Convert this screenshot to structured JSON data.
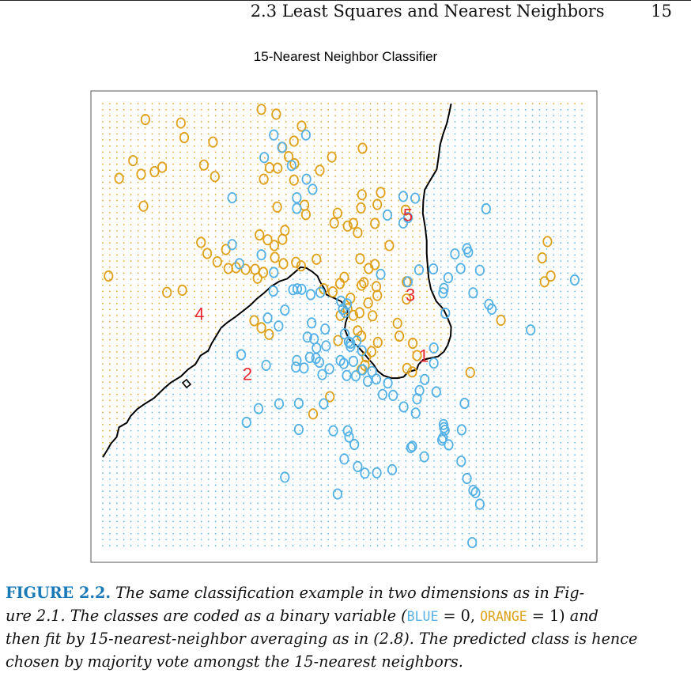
{
  "header": {
    "section_title": "2.3 Least Squares and Nearest Neighbors",
    "page_number": "15"
  },
  "colors": {
    "blue": "#55b1e5",
    "orange": "#dfa11b",
    "boundary": "#000000",
    "label_red": "#e8262e",
    "caption_label": "#1a7ab8"
  },
  "chart_data": {
    "type": "scatter",
    "title": "15-Nearest Neighbor Classifier",
    "xlabel": "",
    "ylabel": "",
    "axes_visible": false,
    "xlim": [
      0,
      1
    ],
    "ylim": [
      0,
      1
    ],
    "classes": [
      {
        "name": "BLUE",
        "code": 0,
        "color": "#55b1e5"
      },
      {
        "name": "ORANGE",
        "code": 1,
        "color": "#dfa11b"
      }
    ],
    "background_grid": {
      "rows": 74,
      "cols": 69,
      "description": "predicted class at each grid location, colored by class"
    },
    "orange_points": [
      [
        0.089,
        0.964
      ],
      [
        0.163,
        0.956
      ],
      [
        0.331,
        0.987
      ],
      [
        0.362,
        0.976
      ],
      [
        0.415,
        0.949
      ],
      [
        0.17,
        0.923
      ],
      [
        0.23,
        0.913
      ],
      [
        0.399,
        0.915
      ],
      [
        0.375,
        0.901
      ],
      [
        0.542,
        0.899
      ],
      [
        0.388,
        0.88
      ],
      [
        0.348,
        0.855
      ],
      [
        0.4,
        0.864
      ],
      [
        0.453,
        0.849
      ],
      [
        0.478,
        0.879
      ],
      [
        0.365,
        0.854
      ],
      [
        0.063,
        0.871
      ],
      [
        0.124,
        0.856
      ],
      [
        0.034,
        0.831
      ],
      [
        0.08,
        0.84
      ],
      [
        0.108,
        0.846
      ],
      [
        0.211,
        0.861
      ],
      [
        0.234,
        0.835
      ],
      [
        0.336,
        0.829
      ],
      [
        0.399,
        0.827
      ],
      [
        0.364,
        0.766
      ],
      [
        0.421,
        0.77
      ],
      [
        0.424,
        0.749
      ],
      [
        0.49,
        0.752
      ],
      [
        0.541,
        0.794
      ],
      [
        0.539,
        0.764
      ],
      [
        0.573,
        0.772
      ],
      [
        0.58,
        0.799
      ],
      [
        0.483,
        0.73
      ],
      [
        0.511,
        0.723
      ],
      [
        0.523,
        0.729
      ],
      [
        0.532,
        0.708
      ],
      [
        0.568,
        0.729
      ],
      [
        0.632,
        0.759
      ],
      [
        0.085,
        0.768
      ],
      [
        0.327,
        0.703
      ],
      [
        0.344,
        0.692
      ],
      [
        0.358,
        0.679
      ],
      [
        0.375,
        0.693
      ],
      [
        0.38,
        0.713
      ],
      [
        0.205,
        0.686
      ],
      [
        0.218,
        0.661
      ],
      [
        0.257,
        0.67
      ],
      [
        0.239,
        0.642
      ],
      [
        0.262,
        0.627
      ],
      [
        0.278,
        0.629
      ],
      [
        0.298,
        0.625
      ],
      [
        0.318,
        0.625
      ],
      [
        0.335,
        0.618
      ],
      [
        0.323,
        0.605
      ],
      [
        0.359,
        0.652
      ],
      [
        0.377,
        0.638
      ],
      [
        0.403,
        0.641
      ],
      [
        0.414,
        0.633
      ],
      [
        0.446,
        0.648
      ],
      [
        0.537,
        0.649
      ],
      [
        0.555,
        0.627
      ],
      [
        0.568,
        0.636
      ],
      [
        0.598,
        0.679
      ],
      [
        0.461,
        0.581
      ],
      [
        0.48,
        0.574
      ],
      [
        0.495,
        0.593
      ],
      [
        0.504,
        0.607
      ],
      [
        0.54,
        0.589
      ],
      [
        0.545,
        0.595
      ],
      [
        0.571,
        0.586
      ],
      [
        0.573,
        0.566
      ],
      [
        0.554,
        0.549
      ],
      [
        0.517,
        0.56
      ],
      [
        0.511,
        0.536
      ],
      [
        0.496,
        0.521
      ],
      [
        0.523,
        0.521
      ],
      [
        0.536,
        0.527
      ],
      [
        0.563,
        0.52
      ],
      [
        0.574,
        0.46
      ],
      [
        0.532,
        0.486
      ],
      [
        0.615,
        0.503
      ],
      [
        0.634,
        0.558
      ],
      [
        0.634,
        0.597
      ],
      [
        0.012,
        0.61
      ],
      [
        0.134,
        0.573
      ],
      [
        0.166,
        0.578
      ],
      [
        0.316,
        0.509
      ],
      [
        0.331,
        0.493
      ],
      [
        0.347,
        0.478
      ],
      [
        0.491,
        0.464
      ],
      [
        0.54,
        0.474
      ],
      [
        0.561,
        0.439
      ],
      [
        0.55,
        0.427
      ],
      [
        0.547,
        0.408
      ],
      [
        0.619,
        0.474
      ],
      [
        0.635,
        0.401
      ],
      [
        0.474,
        0.337
      ],
      [
        0.439,
        0.298
      ],
      [
        0.54,
        0.398
      ],
      [
        0.646,
        0.393
      ],
      [
        0.647,
        0.458
      ],
      [
        0.656,
        0.43
      ],
      [
        0.767,
        0.392
      ],
      [
        0.831,
        0.51
      ],
      [
        0.928,
        0.688
      ],
      [
        0.917,
        0.651
      ],
      [
        0.922,
        0.597
      ],
      [
        0.935,
        0.61
      ]
    ],
    "blue_points": [
      [
        0.357,
        0.929
      ],
      [
        0.424,
        0.929
      ],
      [
        0.337,
        0.878
      ],
      [
        0.374,
        0.901
      ],
      [
        0.394,
        0.86
      ],
      [
        0.425,
        0.829
      ],
      [
        0.438,
        0.806
      ],
      [
        0.405,
        0.787
      ],
      [
        0.27,
        0.787
      ],
      [
        0.405,
        0.763
      ],
      [
        0.627,
        0.79
      ],
      [
        0.652,
        0.786
      ],
      [
        0.594,
        0.748
      ],
      [
        0.637,
        0.742
      ],
      [
        0.627,
        0.73
      ],
      [
        0.27,
        0.681
      ],
      [
        0.285,
        0.638
      ],
      [
        0.331,
        0.658
      ],
      [
        0.357,
        0.618
      ],
      [
        0.356,
        0.576
      ],
      [
        0.397,
        0.579
      ],
      [
        0.406,
        0.581
      ],
      [
        0.415,
        0.58
      ],
      [
        0.434,
        0.568
      ],
      [
        0.454,
        0.573
      ],
      [
        0.497,
        0.553
      ],
      [
        0.51,
        0.547
      ],
      [
        0.501,
        0.535
      ],
      [
        0.506,
        0.528
      ],
      [
        0.58,
        0.614
      ],
      [
        0.66,
        0.624
      ],
      [
        0.637,
        0.597
      ],
      [
        0.69,
        0.626
      ],
      [
        0.721,
        0.606
      ],
      [
        0.76,
        0.672
      ],
      [
        0.763,
        0.664
      ],
      [
        0.735,
        0.66
      ],
      [
        0.747,
        0.627
      ],
      [
        0.787,
        0.623
      ],
      [
        0.8,
        0.762
      ],
      [
        0.712,
        0.582
      ],
      [
        0.71,
        0.572
      ],
      [
        0.715,
        0.526
      ],
      [
        0.773,
        0.572
      ],
      [
        0.806,
        0.546
      ],
      [
        0.812,
        0.535
      ],
      [
        0.893,
        0.488
      ],
      [
        0.985,
        0.601
      ],
      [
        0.344,
        0.515
      ],
      [
        0.367,
        0.497
      ],
      [
        0.38,
        0.533
      ],
      [
        0.436,
        0.504
      ],
      [
        0.427,
        0.472
      ],
      [
        0.441,
        0.468
      ],
      [
        0.446,
        0.447
      ],
      [
        0.464,
        0.49
      ],
      [
        0.466,
        0.452
      ],
      [
        0.445,
        0.424
      ],
      [
        0.452,
        0.415
      ],
      [
        0.473,
        0.4
      ],
      [
        0.496,
        0.419
      ],
      [
        0.523,
        0.417
      ],
      [
        0.542,
        0.398
      ],
      [
        0.562,
        0.394
      ],
      [
        0.553,
        0.372
      ],
      [
        0.571,
        0.377
      ],
      [
        0.584,
        0.342
      ],
      [
        0.595,
        0.368
      ],
      [
        0.606,
        0.34
      ],
      [
        0.628,
        0.314
      ],
      [
        0.513,
        0.461
      ],
      [
        0.517,
        0.458
      ],
      [
        0.53,
        0.463
      ],
      [
        0.517,
        0.451
      ],
      [
        0.505,
        0.479
      ],
      [
        0.541,
        0.441
      ],
      [
        0.432,
        0.426
      ],
      [
        0.403,
        0.404
      ],
      [
        0.405,
        0.419
      ],
      [
        0.42,
        0.402
      ],
      [
        0.458,
        0.387
      ],
      [
        0.503,
        0.412
      ],
      [
        0.528,
        0.384
      ],
      [
        0.509,
        0.385
      ],
      [
        0.289,
        0.432
      ],
      [
        0.341,
        0.408
      ],
      [
        0.368,
        0.321
      ],
      [
        0.325,
        0.31
      ],
      [
        0.3,
        0.279
      ],
      [
        0.409,
        0.322
      ],
      [
        0.461,
        0.321
      ],
      [
        0.409,
        0.263
      ],
      [
        0.481,
        0.26
      ],
      [
        0.511,
        0.26
      ],
      [
        0.514,
        0.246
      ],
      [
        0.525,
        0.229
      ],
      [
        0.504,
        0.196
      ],
      [
        0.532,
        0.179
      ],
      [
        0.547,
        0.164
      ],
      [
        0.604,
        0.172
      ],
      [
        0.643,
        0.222
      ],
      [
        0.646,
        0.225
      ],
      [
        0.708,
        0.239
      ],
      [
        0.714,
        0.261
      ],
      [
        0.712,
        0.267
      ],
      [
        0.748,
        0.191
      ],
      [
        0.755,
        0.322
      ],
      [
        0.71,
        0.244
      ],
      [
        0.749,
        0.262
      ],
      [
        0.722,
        0.228
      ],
      [
        0.671,
        0.201
      ],
      [
        0.711,
        0.274
      ],
      [
        0.656,
        0.332
      ],
      [
        0.661,
        0.351
      ],
      [
        0.653,
        0.3
      ],
      [
        0.691,
        0.413
      ],
      [
        0.672,
        0.376
      ],
      [
        0.691,
        0.447
      ],
      [
        0.696,
        0.348
      ],
      [
        0.76,
        0.152
      ],
      [
        0.773,
        0.125
      ],
      [
        0.778,
        0.12
      ],
      [
        0.787,
        0.094
      ],
      [
        0.771,
        0.007
      ],
      [
        0.49,
        0.117
      ],
      [
        0.38,
        0.155
      ],
      [
        0.572,
        0.165
      ]
    ],
    "decision_boundary": [
      [
        0.0,
        0.2
      ],
      [
        0.009,
        0.216
      ],
      [
        0.017,
        0.231
      ],
      [
        0.029,
        0.246
      ],
      [
        0.034,
        0.268
      ],
      [
        0.05,
        0.278
      ],
      [
        0.058,
        0.293
      ],
      [
        0.072,
        0.309
      ],
      [
        0.085,
        0.319
      ],
      [
        0.107,
        0.334
      ],
      [
        0.129,
        0.357
      ],
      [
        0.142,
        0.369
      ],
      [
        0.163,
        0.383
      ],
      [
        0.178,
        0.399
      ],
      [
        0.193,
        0.41
      ],
      [
        0.204,
        0.43
      ],
      [
        0.22,
        0.441
      ],
      [
        0.227,
        0.457
      ],
      [
        0.237,
        0.475
      ],
      [
        0.247,
        0.493
      ],
      [
        0.26,
        0.505
      ],
      [
        0.276,
        0.517
      ],
      [
        0.294,
        0.532
      ],
      [
        0.309,
        0.545
      ],
      [
        0.321,
        0.558
      ],
      [
        0.337,
        0.572
      ],
      [
        0.352,
        0.587
      ],
      [
        0.369,
        0.598
      ],
      [
        0.385,
        0.604
      ],
      [
        0.398,
        0.616
      ],
      [
        0.413,
        0.63
      ],
      [
        0.425,
        0.628
      ],
      [
        0.437,
        0.62
      ],
      [
        0.448,
        0.61
      ],
      [
        0.454,
        0.596
      ],
      [
        0.462,
        0.582
      ],
      [
        0.467,
        0.568
      ],
      [
        0.483,
        0.56
      ],
      [
        0.497,
        0.553
      ],
      [
        0.505,
        0.544
      ],
      [
        0.51,
        0.532
      ],
      [
        0.511,
        0.518
      ],
      [
        0.507,
        0.505
      ],
      [
        0.505,
        0.49
      ],
      [
        0.51,
        0.476
      ],
      [
        0.517,
        0.463
      ],
      [
        0.532,
        0.451
      ],
      [
        0.545,
        0.435
      ],
      [
        0.555,
        0.422
      ],
      [
        0.565,
        0.41
      ],
      [
        0.574,
        0.395
      ],
      [
        0.586,
        0.385
      ],
      [
        0.602,
        0.379
      ],
      [
        0.616,
        0.379
      ],
      [
        0.628,
        0.382
      ],
      [
        0.637,
        0.393
      ],
      [
        0.655,
        0.398
      ],
      [
        0.659,
        0.41
      ],
      [
        0.668,
        0.42
      ],
      [
        0.682,
        0.424
      ],
      [
        0.7,
        0.428
      ],
      [
        0.712,
        0.439
      ],
      [
        0.72,
        0.454
      ],
      [
        0.726,
        0.474
      ],
      [
        0.727,
        0.495
      ],
      [
        0.719,
        0.517
      ],
      [
        0.711,
        0.535
      ],
      [
        0.696,
        0.553
      ],
      [
        0.685,
        0.58
      ],
      [
        0.68,
        0.606
      ],
      [
        0.678,
        0.633
      ],
      [
        0.676,
        0.661
      ],
      [
        0.676,
        0.69
      ],
      [
        0.673,
        0.72
      ],
      [
        0.668,
        0.752
      ],
      [
        0.669,
        0.78
      ],
      [
        0.672,
        0.805
      ],
      [
        0.683,
        0.826
      ],
      [
        0.697,
        0.851
      ],
      [
        0.701,
        0.88
      ],
      [
        0.704,
        0.906
      ],
      [
        0.71,
        0.93
      ],
      [
        0.718,
        0.955
      ],
      [
        0.723,
        0.978
      ],
      [
        0.727,
        1.0
      ]
    ],
    "region_labels": [
      {
        "text": "1",
        "x": 0.67,
        "y": 0.43
      },
      {
        "text": "2",
        "x": 0.302,
        "y": 0.389
      },
      {
        "text": "3",
        "x": 0.642,
        "y": 0.568
      },
      {
        "text": "4",
        "x": 0.202,
        "y": 0.525
      },
      {
        "text": "5",
        "x": 0.637,
        "y": 0.749
      }
    ]
  },
  "caption": {
    "label": "FIGURE 2.2.",
    "line1": "The same classification example in two dimensions as in Fig-",
    "line2_a": "ure 2.1. The classes are coded as a binary variable (",
    "blue_word": "BLUE",
    "eq0": " = 0, ",
    "orange_word": "ORANGE",
    "eq1": " = 1)",
    "line2_b": " and",
    "line3": "then fit by 15-nearest-neighbor averaging as in (2.8). The predicted class is hence",
    "line4": "chosen by majority vote amongst the 15-nearest neighbors."
  }
}
